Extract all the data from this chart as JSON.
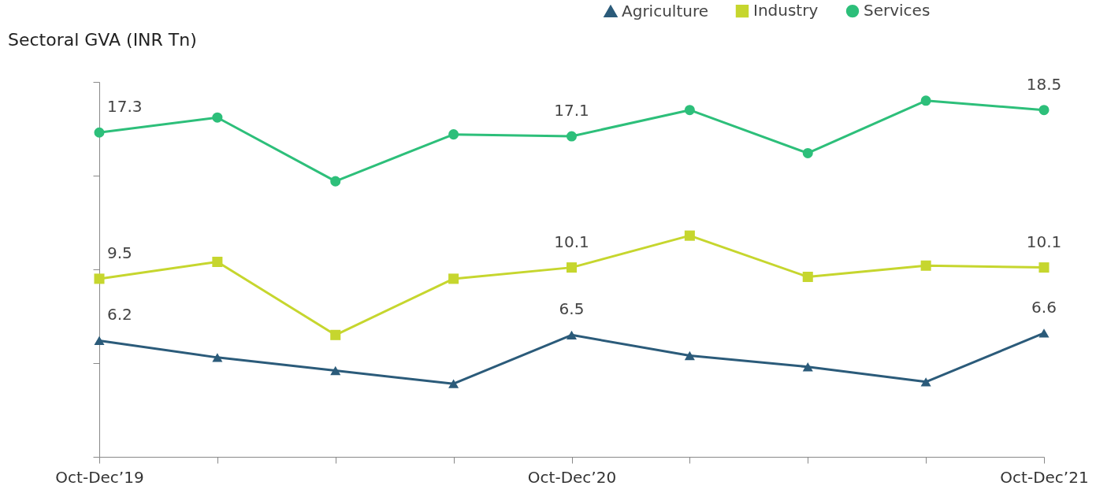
{
  "chart_data": {
    "type": "line",
    "title": "Sectoral GVA (INR Tn)",
    "categories": [
      "Oct-Dec’19",
      null,
      null,
      null,
      "Oct-Dec’20",
      null,
      null,
      null,
      "Oct-Dec’21"
    ],
    "ylim": [
      0,
      20
    ],
    "yticks": [
      {
        "value": 0,
        "label": null
      },
      {
        "value": 5,
        "label": null
      },
      {
        "value": 10,
        "label": null
      },
      {
        "value": 15,
        "label": null
      },
      {
        "value": 20,
        "label": null
      }
    ],
    "tick_labels": "x",
    "grid": false,
    "legend": "top right",
    "line_style": "solid",
    "series": [
      {
        "name": "Agriculture",
        "color": "#2b5b7a",
        "marker": "triangle",
        "values": [
          6.2,
          5.3,
          4.6,
          3.9,
          6.5,
          5.4,
          4.8,
          4.0,
          6.6
        ],
        "value_labels": [
          "6.2",
          null,
          null,
          null,
          "6.5",
          null,
          null,
          null,
          "6.6"
        ]
      },
      {
        "name": "Industry",
        "color": "#c6d62e",
        "marker": "square",
        "values": [
          9.5,
          10.4,
          6.5,
          9.5,
          10.1,
          11.8,
          9.6,
          10.2,
          10.1
        ],
        "value_labels": [
          "9.5",
          null,
          null,
          null,
          "10.1",
          null,
          null,
          null,
          "10.1"
        ]
      },
      {
        "name": "Services",
        "color": "#2dbf7a",
        "marker": "circle",
        "values": [
          17.3,
          18.1,
          14.7,
          17.2,
          17.1,
          18.5,
          16.2,
          19.0,
          18.5
        ],
        "value_labels": [
          "17.3",
          null,
          null,
          null,
          "17.1",
          null,
          null,
          null,
          "18.5"
        ]
      }
    ]
  }
}
